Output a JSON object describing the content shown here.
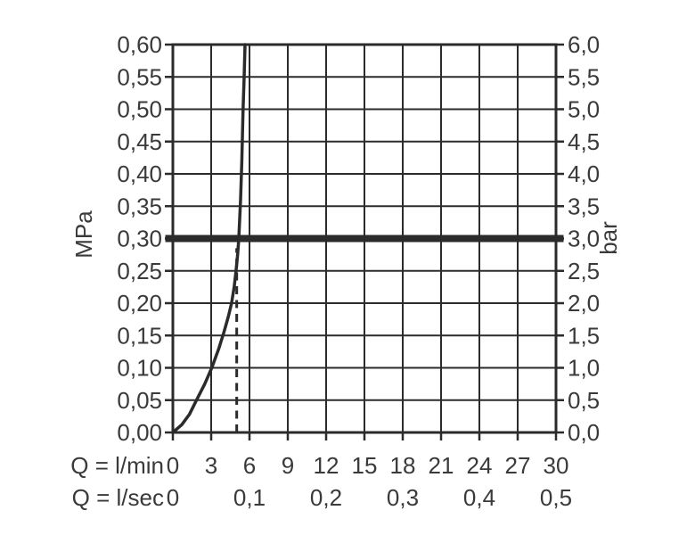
{
  "chart_data": {
    "type": "line",
    "title": "",
    "grid": true,
    "legend": false,
    "colors": {
      "line": "#2b2b2b",
      "curve": "#2b2b2b",
      "reference_line": "#2b2b2b",
      "text": "#3a3a3a",
      "background": "#ffffff"
    },
    "x_axis_primary": {
      "label": "Q = l/min",
      "min": 0,
      "max": 30,
      "step": 3,
      "ticks": [
        "0",
        "3",
        "6",
        "9",
        "12",
        "15",
        "18",
        "21",
        "24",
        "27",
        "30"
      ]
    },
    "x_axis_secondary": {
      "label": "Q = l/sec",
      "ticks": [
        {
          "q": 0,
          "label": "0"
        },
        {
          "q": 6,
          "label": "0,1"
        },
        {
          "q": 12,
          "label": "0,2"
        },
        {
          "q": 18,
          "label": "0,3"
        },
        {
          "q": 24,
          "label": "0,4"
        },
        {
          "q": 30,
          "label": "0,5"
        }
      ]
    },
    "y_axis_left": {
      "label": "MPa",
      "min": 0,
      "max": 0.6,
      "step": 0.05,
      "ticks": [
        "0,00",
        "0,05",
        "0,10",
        "0,15",
        "0,20",
        "0,25",
        "0,30",
        "0,35",
        "0,40",
        "0,45",
        "0,50",
        "0,55",
        "0,60"
      ]
    },
    "y_axis_right": {
      "label": "bar",
      "min": 0,
      "max": 6,
      "step": 0.5,
      "ticks": [
        "0,0",
        "0,5",
        "1,0",
        "1,5",
        "2,0",
        "2,5",
        "3,0",
        "3,5",
        "4,0",
        "4,5",
        "5,0",
        "5,5",
        "6,0"
      ]
    },
    "reference_line": {
      "orientation": "horizontal",
      "p_mpa": 0.3,
      "p_bar": 3.0
    },
    "marker_line": {
      "orientation": "vertical",
      "style": "dashed",
      "q_lmin": 5,
      "meets_curve_at_mpa": 0.285
    },
    "series": [
      {
        "name": "pressure-flow-curve",
        "points_q_lmin_p_mpa": [
          [
            0,
            0
          ],
          [
            0.7,
            0.012
          ],
          [
            1.3,
            0.028
          ],
          [
            1.85,
            0.05
          ],
          [
            2.5,
            0.075
          ],
          [
            3.05,
            0.1
          ],
          [
            3.6,
            0.13
          ],
          [
            4.0,
            0.155
          ],
          [
            4.35,
            0.18
          ],
          [
            4.6,
            0.2
          ],
          [
            4.8,
            0.225
          ],
          [
            4.95,
            0.25
          ],
          [
            5.07,
            0.275
          ],
          [
            5.16,
            0.3
          ],
          [
            5.3,
            0.36
          ],
          [
            5.4,
            0.42
          ],
          [
            5.5,
            0.5
          ],
          [
            5.58,
            0.55
          ],
          [
            5.65,
            0.6
          ]
        ]
      }
    ]
  }
}
